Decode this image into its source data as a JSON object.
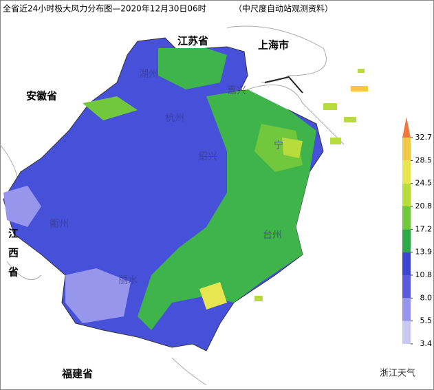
{
  "title": "全省近24小时极大风力分布图—2020年12月30日06时",
  "subtitle": "（中尺度自动站观测资料）",
  "provinces": [
    "江苏省",
    "上海市",
    "安徽省",
    "江",
    "西",
    "省",
    "福建省"
  ],
  "cities": [
    "湖州",
    "嘉兴",
    "杭州",
    "绍兴",
    "宁",
    "衢州",
    "台州",
    "丽水"
  ],
  "legend": {
    "ticks": [
      3.4,
      5.5,
      {
        "value": 8,
        "label": "8.0"
      },
      10.8,
      13.9,
      17.2,
      20.8,
      24.5,
      28.5,
      32.7
    ],
    "colors": [
      "#c8c8f2",
      "#9696ec",
      "#5a5ae0",
      "#3c46d2",
      "#2fa84a",
      "#72c83c",
      "#b8dc3c",
      "#e8e650",
      "#f2c84a",
      "#f07840"
    ]
  },
  "watermark": "浙江天气"
}
